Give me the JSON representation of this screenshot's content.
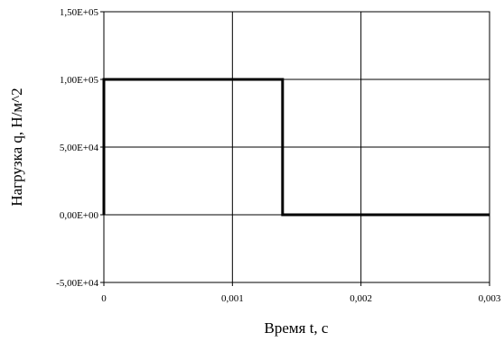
{
  "chart_data": {
    "type": "line",
    "title": "",
    "xlabel": "Время t, с",
    "ylabel": "Нагрузка q, Н/м^2",
    "xlim": [
      0,
      0.003
    ],
    "ylim": [
      -50000,
      150000
    ],
    "grid": true,
    "x_tick_labels": [
      "0",
      "0,001",
      "0,002",
      "0,003"
    ],
    "y_tick_labels": [
      "-5,00E+04",
      "0,00E+00",
      "5,00E+04",
      "1,00E+05",
      "1,50E+05"
    ],
    "series": [
      {
        "x": [
          0,
          0,
          0.00139,
          0.00139,
          0.003
        ],
        "y": [
          0,
          100000,
          100000,
          0,
          0
        ],
        "color": "#000000"
      }
    ]
  }
}
